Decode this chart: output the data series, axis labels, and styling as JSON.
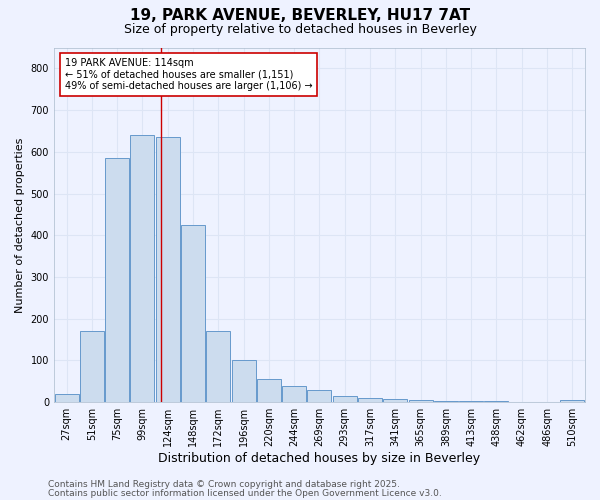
{
  "title1": "19, PARK AVENUE, BEVERLEY, HU17 7AT",
  "title2": "Size of property relative to detached houses in Beverley",
  "xlabel": "Distribution of detached houses by size in Beverley",
  "ylabel": "Number of detached properties",
  "categories": [
    "27sqm",
    "51sqm",
    "75sqm",
    "99sqm",
    "124sqm",
    "148sqm",
    "172sqm",
    "196sqm",
    "220sqm",
    "244sqm",
    "269sqm",
    "293sqm",
    "317sqm",
    "341sqm",
    "365sqm",
    "389sqm",
    "413sqm",
    "438sqm",
    "462sqm",
    "486sqm",
    "510sqm"
  ],
  "values": [
    20,
    170,
    585,
    640,
    635,
    425,
    170,
    100,
    55,
    40,
    30,
    15,
    10,
    8,
    5,
    4,
    3,
    2,
    1,
    1,
    5
  ],
  "bar_color": "#ccdcee",
  "bar_edge_color": "#6699cc",
  "vline_x": 3.72,
  "vline_color": "#cc0000",
  "annotation_text": "19 PARK AVENUE: 114sqm\n← 51% of detached houses are smaller (1,151)\n49% of semi-detached houses are larger (1,106) →",
  "annotation_box_color": "#ffffff",
  "annotation_box_edge": "#cc0000",
  "ylim": [
    0,
    850
  ],
  "yticks": [
    0,
    100,
    200,
    300,
    400,
    500,
    600,
    700,
    800
  ],
  "footer1": "Contains HM Land Registry data © Crown copyright and database right 2025.",
  "footer2": "Contains public sector information licensed under the Open Government Licence v3.0.",
  "bg_color": "#eef2ff",
  "grid_color": "#dde5f5",
  "title1_fontsize": 11,
  "title2_fontsize": 9,
  "xlabel_fontsize": 9,
  "ylabel_fontsize": 8,
  "tick_fontsize": 7,
  "annot_fontsize": 7,
  "footer_fontsize": 6.5
}
